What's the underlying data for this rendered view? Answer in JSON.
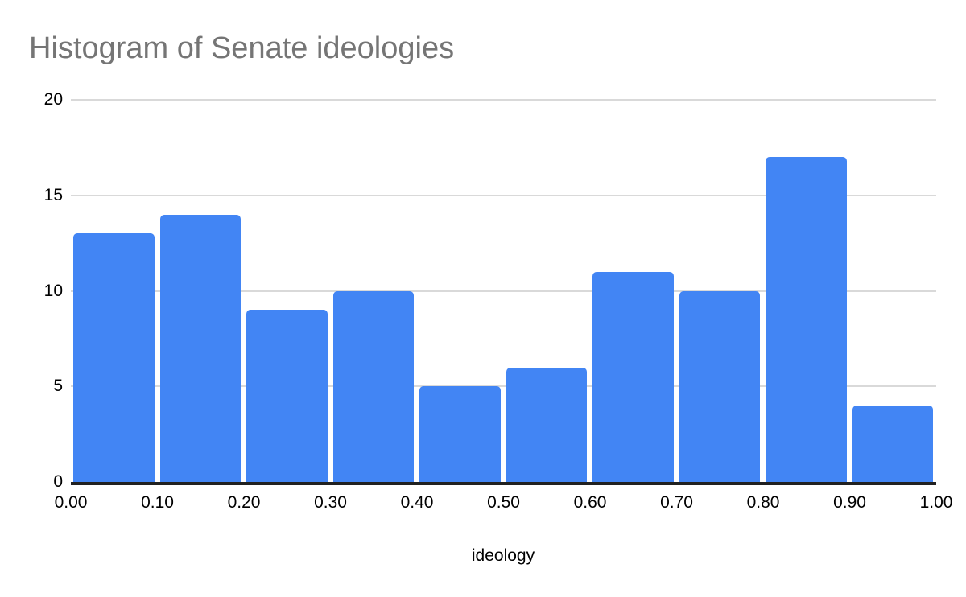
{
  "chart_data": {
    "type": "bar",
    "subtype": "histogram",
    "title": "Histogram of Senate ideologies",
    "xlabel": "ideology",
    "ylabel": "",
    "bin_edges": [
      0.0,
      0.1,
      0.2,
      0.3,
      0.4,
      0.5,
      0.6,
      0.7,
      0.8,
      0.9,
      1.0
    ],
    "values": [
      13,
      14,
      9,
      10,
      5,
      6,
      11,
      10,
      17,
      4
    ],
    "x_tick_labels": [
      "0.00",
      "0.10",
      "0.20",
      "0.30",
      "0.40",
      "0.50",
      "0.60",
      "0.70",
      "0.80",
      "0.90",
      "1.00"
    ],
    "y_ticks": [
      0,
      5,
      10,
      15,
      20
    ],
    "ylim": [
      0,
      20
    ],
    "xlim": [
      0.0,
      1.0
    ],
    "grid": true,
    "legend_position": "none",
    "colors": {
      "bar": "#4285f4",
      "title": "#757575",
      "gridline": "#d9d9d9",
      "axis_line": "#212121",
      "tick_label": "#000000",
      "background": "#ffffff"
    }
  }
}
